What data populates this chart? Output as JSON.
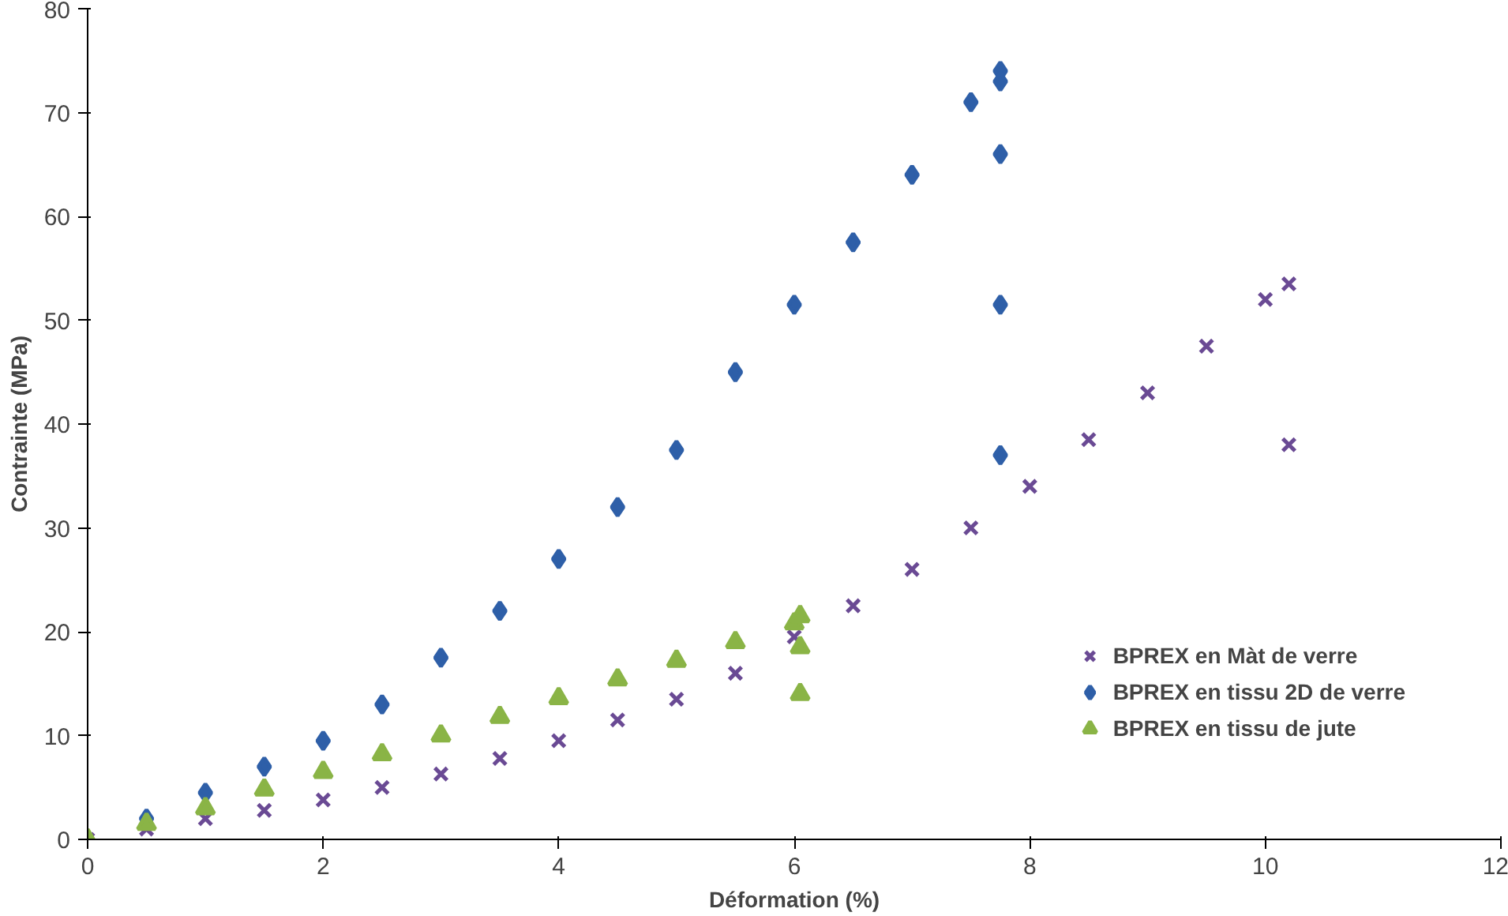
{
  "chart_data": {
    "type": "scatter",
    "xlabel": "Déformation (%)",
    "ylabel": "Contrainte (MPa)",
    "xlim": [
      0,
      12
    ],
    "xticks": [
      0,
      2,
      4,
      6,
      8,
      10,
      12
    ],
    "ylim": [
      0,
      80
    ],
    "yticks": [
      0,
      10,
      20,
      30,
      40,
      50,
      60,
      70,
      80
    ],
    "grid": false,
    "legend": "right",
    "series": [
      {
        "name": "BPREX en Màt de verre",
        "color": "#6a4a94",
        "marker": "cross",
        "x": [
          0,
          0.5,
          1,
          1.5,
          2,
          2.5,
          3,
          3.5,
          4,
          4.5,
          5,
          5.5,
          6,
          6.5,
          7,
          7.5,
          8,
          8.5,
          9,
          9.5,
          10,
          10.2,
          10.2
        ],
        "values": [
          0,
          1,
          2,
          2.8,
          3.8,
          5,
          6.3,
          7.8,
          9.5,
          11.5,
          13.5,
          16,
          19.5,
          22.5,
          26,
          30,
          34,
          38.5,
          43,
          47.5,
          52,
          53.5,
          38
        ]
      },
      {
        "name": "BPREX en tissu 2D de verre",
        "color": "#2e5fa8",
        "marker": "diamond",
        "x": [
          0.5,
          1,
          1.5,
          2,
          2.5,
          3,
          3.5,
          4,
          4.5,
          5,
          5.5,
          6,
          6.5,
          7,
          7.5,
          7.75,
          7.75,
          7.75,
          7.75,
          7.75
        ],
        "values": [
          2,
          4.5,
          7,
          9.5,
          13,
          17.5,
          22,
          27,
          32,
          37.5,
          45,
          51.5,
          57.5,
          64,
          71,
          74,
          73,
          66,
          51.5,
          37
        ]
      },
      {
        "name": "BPREX en tissu de jute",
        "color": "#8ab446",
        "marker": "triangle",
        "x": [
          0,
          0.5,
          1,
          1.5,
          2,
          2.5,
          3,
          3.5,
          4,
          4.5,
          5,
          5.5,
          6,
          6.05,
          6.05,
          6.05
        ],
        "values": [
          0,
          1.5,
          3,
          4.8,
          6.5,
          8.2,
          10,
          11.8,
          13.6,
          15.4,
          17.2,
          19,
          20.8,
          21.5,
          18.5,
          14
        ]
      }
    ]
  }
}
